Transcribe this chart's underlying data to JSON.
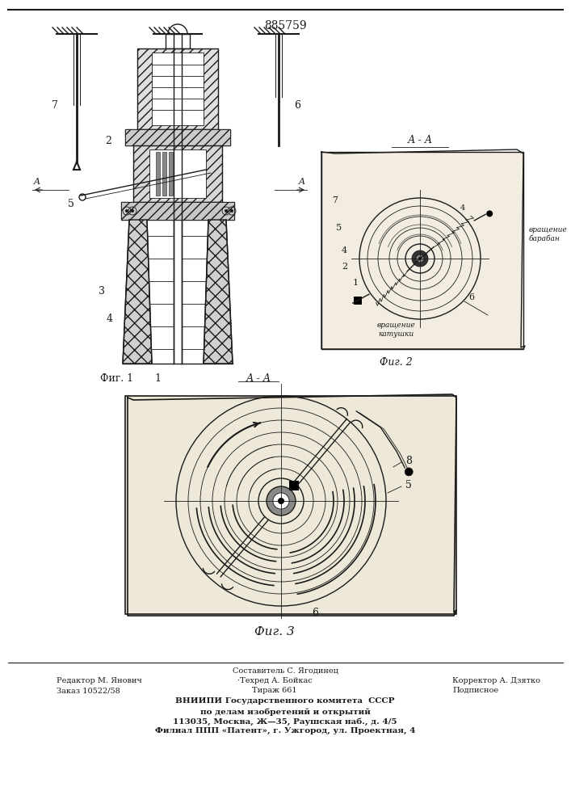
{
  "patent_number": "885759",
  "line_color": "#1a1a1a",
  "fig1_label": "Фиг. 1",
  "fig2_label": "Фиг. 2",
  "fig3_label": "Фиг. 3",
  "footer_line1_left": "Редактор М. Янович",
  "footer_line1_center": "·Техред А. Бойкас",
  "footer_line1_right": "Корректор А. Дзятко",
  "footer_line2_left": "Заказ 10522/58",
  "footer_line2_center": "Тираж 661",
  "footer_line2_right": "Подписное",
  "footer_line0": "Составитель С. Ягодинец",
  "footer_org1": "ВНИИПИ Государственного комитета  СССР",
  "footer_org2": "по делам изобретений и открытий",
  "footer_org3": "113035, Москва, Ж—35, Раушская наб., д. 4/5",
  "footer_org4": "Филиал ППП «Патент», г. Ужгород, ул. Проектная, 4",
  "rot_drum": "вращение\nбарабан",
  "rot_coil": "вращение\nкатушки"
}
